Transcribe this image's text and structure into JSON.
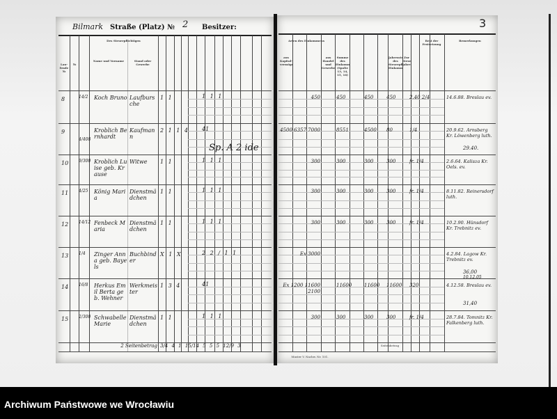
{
  "header": {
    "street_handwritten": "Bilmark",
    "street_label": "Straße (Platz) №",
    "number": "2",
    "owner_label": "Besitzer:",
    "page_number": "3"
  },
  "left_headers": {
    "row_no": "Lau-fende №",
    "house_no": "№",
    "taxpayer": "Des Steuerpflichtigen",
    "name": "Name und Vorname",
    "stand": "Stand oder Gewerbe"
  },
  "right_headers": {
    "income_types": "Arten des Einkommens",
    "capital": "aus Kapital-vermögen",
    "trade": "aus Handel und Gewerbe",
    "sum": "Summe des Einkommens (Spalte 13, 14, 15, 16)",
    "annual_tax": "Jahressteuer des Steuerpflichtigen Einkommens",
    "tax_year": "Zur Steuer-jahre",
    "assessment": "Rest der Festsetzung",
    "remarks": "Bemerkungen"
  },
  "rows": [
    {
      "no": "8",
      "house": "14/2",
      "name": "Koch Bruno",
      "stand": "Laufbursche",
      "counts": "1  1",
      "marks": "1 1 1",
      "income": "450",
      "sum": "450",
      "col17": "450",
      "tax": "450",
      "rate": "2.40 2/4",
      "remarks": "14.6.88. Breslau ev."
    },
    {
      "no": "9",
      "house": "4/408",
      "name": "Kroblich Bernhardt",
      "stand": "Kaufmann",
      "counts": "2 1 1 4",
      "marks": "41",
      "note": "Sp. A 2 ide",
      "income": "4500 6357 7000",
      "sum": "8551",
      "col17": "4500",
      "tax": "80",
      "rate": "1/4",
      "remarks": "20.9.62. Arnsberg Kr. Löwenberg luth.",
      "remarks2": "29.40."
    },
    {
      "no": "10",
      "house": "9/300",
      "name": "Kroblich Luise geb. Krause",
      "stand": "Witwe",
      "counts": "1  1",
      "marks": "1 1 1",
      "income": "300",
      "sum": "300",
      "col17": "300",
      "tax": "300",
      "rate": "fr. 1/4",
      "remarks": "2.6.64. Kalisza Kr. Oels. ev."
    },
    {
      "no": "11",
      "house": "4/25",
      "name": "König Maria",
      "stand": "Dienstmädchen",
      "counts": "1  1",
      "marks": "1 1 1",
      "income": "300",
      "sum": "300",
      "col17": "300",
      "tax": "300",
      "rate": "fr. 1/4",
      "remarks": "8.11.82. Reinersdorf luth."
    },
    {
      "no": "12",
      "house": "14/12",
      "name": "Fenbeck Maria",
      "stand": "Dienstmädchen",
      "counts": "1  1",
      "marks": "1 1 1",
      "income": "300",
      "sum": "300",
      "col17": "300",
      "tax": "300",
      "rate": "fr. 1/4",
      "remarks": "10.2.90. Hünsdorf Kr. Trebnitz ev."
    },
    {
      "no": "13",
      "house": "1/4",
      "name": "Zinger Anna geb. Bayels",
      "stand": "Buchbinder",
      "counts": "X 1  X",
      "marks": "2 2 / 1 1",
      "income": "Ex 3000",
      "sum": "",
      "col17": "",
      "tax": "",
      "rate": "",
      "remarks": "4.2.84. Lagow Kr. Trebnitz ev.",
      "remarks2": "36,00",
      "remarks3": "10.12.05"
    },
    {
      "no": "14",
      "house": "16/8",
      "name": "Herkus Emil Berta geb. Wehner",
      "stand": "Werkmeister",
      "counts": "1 3  4",
      "marks": "41",
      "income": "Ex 1200 11600 2100",
      "sum": "11600",
      "col17": "11600",
      "tax": "11600",
      "rate": "320",
      "remarks": "4.12.58. Breslau ev.",
      "remarks2": "31,40"
    },
    {
      "no": "15",
      "house": "2/300",
      "name": "Schwabelle Marie",
      "stand": "Dienstmädchen",
      "counts": "1  1",
      "marks": "1 1 1",
      "income": "300",
      "sum": "300",
      "col17": "300",
      "tax": "300",
      "rate": "fr. 1/4",
      "remarks": "28.7.84. Tomnitz Kr. Falkenberg luth."
    }
  ],
  "totals": {
    "label": "2 Seitenbetrag",
    "values": "3/4  4  1  15/14    5  5  5  12/9  3"
  },
  "right_footer": {
    "form": "Muster V. Nachw. Nr. 101.",
    "carry": "Seitenbetrag"
  },
  "archive": {
    "label": "Archiwum Państwowe we Wrocławiu"
  }
}
